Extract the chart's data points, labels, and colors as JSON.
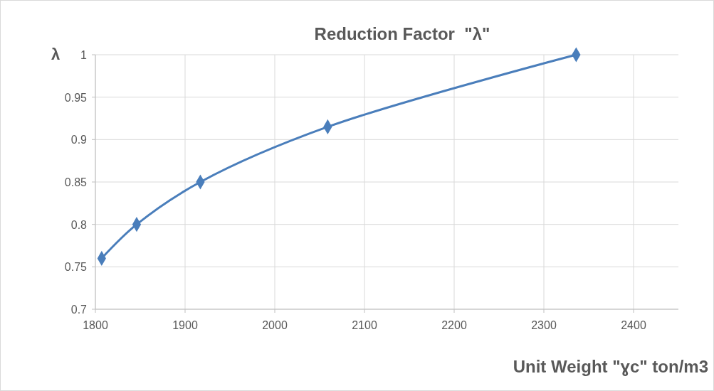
{
  "chart_data": {
    "type": "line",
    "title": "Reduction Factor  \"λ\"",
    "xlabel": "Unit Weight \"ɣc\" ton/m3",
    "ylabel": "λ",
    "x": [
      1807,
      1846,
      1917,
      2059,
      2336
    ],
    "series": [
      {
        "color": "#4a7ebb",
        "values": [
          0.76,
          0.8,
          0.85,
          0.915,
          1.0
        ]
      }
    ],
    "xlim": [
      1800,
      2450
    ],
    "xticks": [
      1800,
      1900,
      2000,
      2100,
      2200,
      2300,
      2400
    ],
    "ylim": [
      0.7,
      1
    ],
    "yticks": [
      0.7,
      0.75,
      0.8,
      0.85,
      0.9,
      0.95,
      1
    ],
    "grid": true,
    "marker": "diamond",
    "line_style": "solid"
  }
}
